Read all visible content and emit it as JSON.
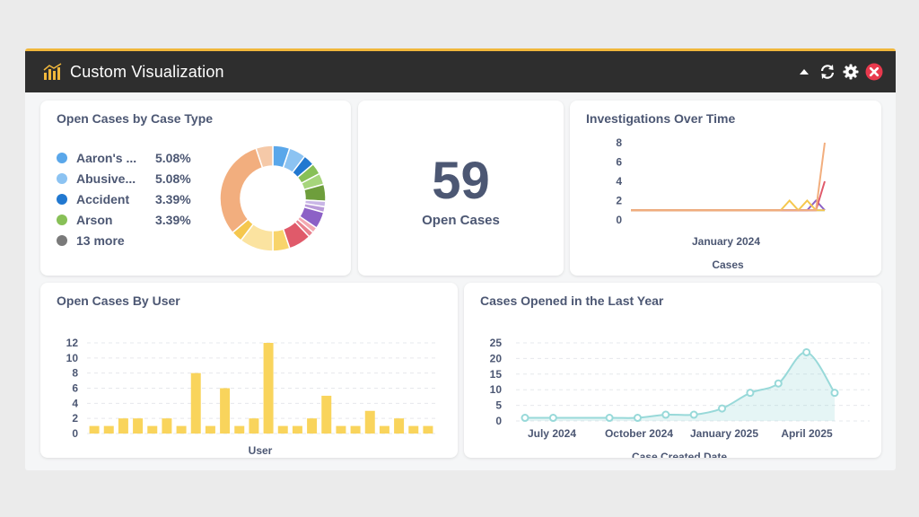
{
  "window": {
    "title": "Custom Visualization",
    "accent_color": "#f0b73b",
    "icons": [
      "bar-chart-logo-icon",
      "collapse-arrow-icon",
      "refresh-icon",
      "settings-gear-icon",
      "close-icon"
    ]
  },
  "card_case_type": {
    "title": "Open Cases by Case Type",
    "legend": [
      {
        "name": "Aaron's ...",
        "pct": "5.08%",
        "color": "#5aa7ea"
      },
      {
        "name": "Abusive...",
        "pct": "5.08%",
        "color": "#8cc3f2"
      },
      {
        "name": "Accident",
        "pct": "3.39%",
        "color": "#2178d0"
      },
      {
        "name": "Arson",
        "pct": "3.39%",
        "color": "#88c057"
      },
      {
        "name": "13 more",
        "pct": "",
        "color": "#7a7a7a"
      }
    ]
  },
  "card_open_cases": {
    "value": "59",
    "label": "Open Cases"
  },
  "card_investigations": {
    "title": "Investigations Over Time"
  },
  "card_by_user": {
    "title": "Open Cases By User"
  },
  "card_last_year": {
    "title": "Cases Opened in the Last Year"
  },
  "chart_data": [
    {
      "type": "pie",
      "title": "Open Cases by Case Type",
      "donut": true,
      "slices": [
        {
          "label": "Aaron's ...",
          "value": 5.08,
          "color": "#5aa7ea"
        },
        {
          "label": "Abusive...",
          "value": 5.08,
          "color": "#8cc3f2"
        },
        {
          "label": "Accident",
          "value": 3.39,
          "color": "#2178d0"
        },
        {
          "label": "Arson",
          "value": 3.39,
          "color": "#88c057"
        },
        {
          "value": 3.39,
          "color": "#a6d57b"
        },
        {
          "value": 5.08,
          "color": "#6e9e3c"
        },
        {
          "value": 1.69,
          "color": "#c9b6e6"
        },
        {
          "value": 1.69,
          "color": "#b99ad9"
        },
        {
          "value": 5.08,
          "color": "#8c61c6"
        },
        {
          "value": 1.69,
          "color": "#f3a9b2"
        },
        {
          "value": 1.69,
          "color": "#e9828f"
        },
        {
          "value": 6.78,
          "color": "#e05a6a"
        },
        {
          "value": 5.08,
          "color": "#f8d46b"
        },
        {
          "value": 10.17,
          "color": "#fbe3a0"
        },
        {
          "value": 3.39,
          "color": "#f5c74e"
        },
        {
          "value": 30.5,
          "color": "#f2ae7e"
        },
        {
          "value": 5.08,
          "color": "#f5c9a8"
        }
      ]
    },
    {
      "type": "line",
      "title": "Investigations Over Time",
      "xlabel": "Cases",
      "x_ticks": [
        "January 2024"
      ],
      "ylim": [
        0,
        8
      ],
      "y_ticks": [
        0,
        2,
        4,
        6,
        8
      ],
      "series": [
        {
          "values": [
            1,
            1,
            1,
            1,
            1,
            1,
            1,
            1,
            1,
            1,
            1,
            1,
            1,
            1,
            1,
            1,
            1,
            1,
            1,
            1,
            1,
            1,
            8
          ],
          "color": "#f2ae7e"
        },
        {
          "values": [
            1,
            1,
            1,
            1,
            1,
            1,
            1,
            1,
            1,
            1,
            1,
            1,
            1,
            1,
            1,
            1,
            1,
            1,
            2,
            1,
            2,
            1,
            1
          ],
          "color": "#f5c74e"
        },
        {
          "values": [
            1,
            1,
            1,
            1,
            1,
            1,
            1,
            1,
            1,
            1,
            1,
            1,
            1,
            1,
            1,
            1,
            1,
            1,
            1,
            1,
            1,
            1,
            4
          ],
          "color": "#e05a6a"
        },
        {
          "values": [
            1,
            1,
            1,
            1,
            1,
            1,
            1,
            1,
            1,
            1,
            1,
            1,
            1,
            1,
            1,
            1,
            1,
            1,
            1,
            1,
            1,
            2,
            1
          ],
          "color": "#8c61c6"
        },
        {
          "values": [
            1,
            1,
            1,
            1,
            1,
            1,
            1,
            1,
            1,
            1,
            1,
            1,
            1,
            1,
            1,
            1,
            1,
            1,
            1,
            1,
            1,
            1,
            1
          ],
          "color": "#5aa7ea"
        }
      ]
    },
    {
      "type": "bar",
      "title": "Open Cases By User",
      "xlabel": "User",
      "ylim": [
        0,
        12
      ],
      "y_ticks": [
        0,
        2,
        4,
        6,
        8,
        10,
        12
      ],
      "color": "#f9d45c",
      "values": [
        1,
        1,
        2,
        2,
        1,
        2,
        1,
        8,
        1,
        6,
        1,
        2,
        12,
        1,
        1,
        2,
        5,
        1,
        1,
        3,
        1,
        2,
        1,
        1
      ]
    },
    {
      "type": "area",
      "title": "Cases Opened in the Last Year",
      "xlabel": "Case Created Date",
      "x_ticks": [
        "July 2024",
        "October 2024",
        "January 2025",
        "April 2025"
      ],
      "ylim": [
        0,
        25
      ],
      "y_ticks": [
        0,
        5,
        10,
        15,
        20,
        25
      ],
      "color": "#98d9d9",
      "points": [
        {
          "x": 0.0,
          "y": 1
        },
        {
          "x": 1.0,
          "y": 1
        },
        {
          "x": 3.0,
          "y": 1
        },
        {
          "x": 4.0,
          "y": 1
        },
        {
          "x": 5.0,
          "y": 2
        },
        {
          "x": 6.0,
          "y": 2
        },
        {
          "x": 7.0,
          "y": 4
        },
        {
          "x": 8.0,
          "y": 9
        },
        {
          "x": 9.0,
          "y": 12
        },
        {
          "x": 10.0,
          "y": 22
        },
        {
          "x": 11.0,
          "y": 9
        }
      ]
    }
  ]
}
